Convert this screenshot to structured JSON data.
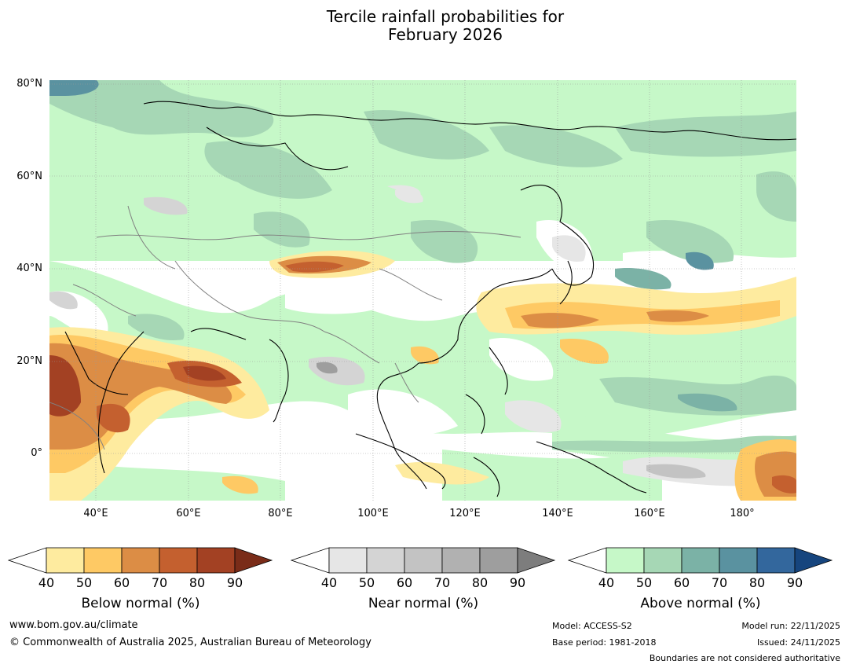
{
  "title_line1": "Tercile rainfall probabilities for",
  "title_line2": "February 2026",
  "map": {
    "lat_labels": [
      "80°N",
      "60°N",
      "40°N",
      "20°N",
      "0°"
    ],
    "lon_labels": [
      "40°E",
      "60°E",
      "80°E",
      "100°E",
      "120°E",
      "140°E",
      "160°E",
      "180°"
    ]
  },
  "legends": [
    {
      "label": "Below normal (%)",
      "ticks": [
        "40",
        "50",
        "60",
        "70",
        "80",
        "90"
      ],
      "colors": [
        "#ffffff",
        "#feeb9f",
        "#fec964",
        "#dc8d45",
        "#c4602f",
        "#a34123",
        "#7a2c18"
      ]
    },
    {
      "label": "Near normal (%)",
      "ticks": [
        "40",
        "50",
        "60",
        "70",
        "80",
        "90"
      ],
      "colors": [
        "#ffffff",
        "#e6e6e6",
        "#d4d4d4",
        "#c3c3c3",
        "#b1b1b1",
        "#9e9e9e",
        "#7d7d7d"
      ]
    },
    {
      "label": "Above normal (%)",
      "ticks": [
        "40",
        "50",
        "60",
        "70",
        "80",
        "90"
      ],
      "colors": [
        "#ffffff",
        "#c6f8c8",
        "#a6d7b5",
        "#7bb2a6",
        "#5a92a0",
        "#33679d",
        "#16457e"
      ]
    }
  ],
  "footer": {
    "url": "www.bom.gov.au/climate",
    "copyright": "© Commonwealth of Australia 2025, Australian Bureau of Meteorology",
    "model": "Model: ACCESS-S2",
    "base_period": "Base period: 1981-2018",
    "model_run": "Model run: 22/11/2025",
    "issued": "Issued: 24/11/2025",
    "disclaimer": "Boundaries are not considered authoritative"
  }
}
